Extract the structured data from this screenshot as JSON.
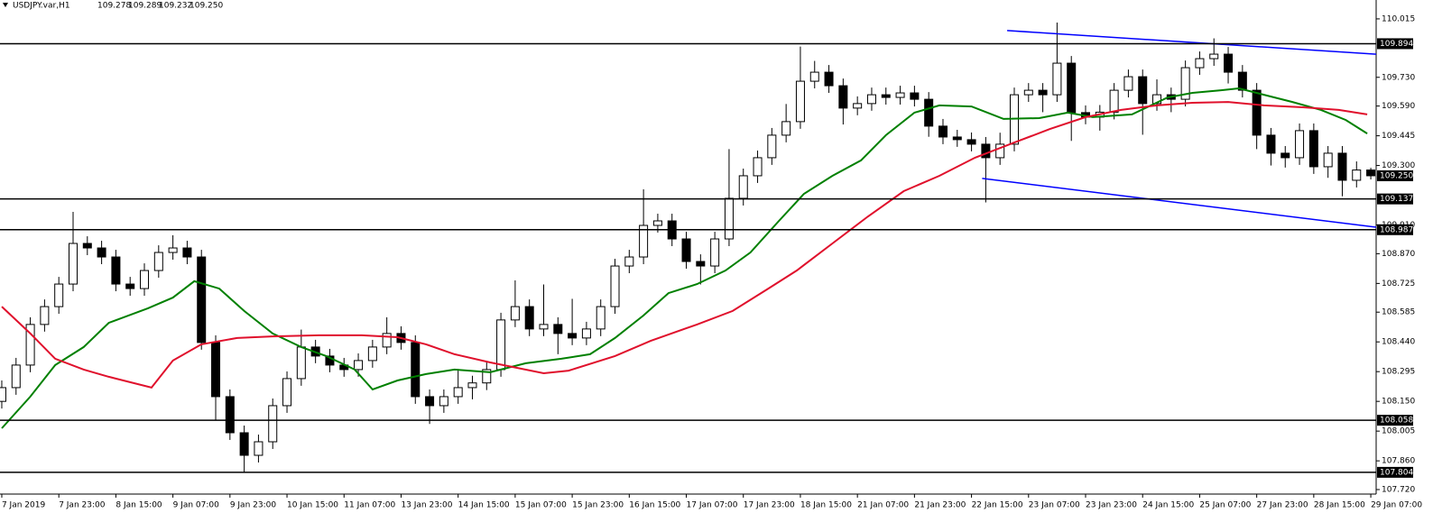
{
  "chart_data": {
    "type": "candlestick",
    "title": "USDJPY.var,H1",
    "ohlc_labels": [
      "109.278",
      "109.289",
      "109.232",
      "109.250"
    ],
    "x": [
      0,
      4,
      8,
      12,
      16,
      20,
      24,
      28,
      32,
      36,
      40,
      44,
      48,
      52,
      56,
      60,
      64,
      68,
      72,
      76,
      80,
      84,
      88,
      92,
      96,
      100,
      104,
      108,
      112,
      116,
      120,
      124,
      128,
      132,
      136,
      140,
      144,
      148,
      152,
      156,
      160,
      164,
      168,
      172,
      176,
      180,
      184,
      188,
      192,
      196,
      200,
      204,
      208,
      212,
      216,
      220,
      224,
      228,
      232,
      236,
      240,
      244,
      248,
      252,
      256,
      260,
      264,
      268,
      272,
      276,
      280,
      284,
      288,
      292,
      296,
      300,
      304,
      308,
      312,
      316,
      320,
      324,
      328,
      332,
      336,
      340,
      344,
      348,
      352,
      356,
      360,
      364,
      368,
      372,
      376,
      380,
      384
    ],
    "open": [
      108.15,
      108.217,
      108.327,
      108.525,
      108.612,
      108.722,
      108.92,
      108.898,
      108.854,
      108.722,
      108.7,
      108.788,
      108.876,
      108.898,
      108.854,
      108.437,
      108.173,
      107.997,
      107.887,
      107.953,
      108.129,
      108.261,
      108.415,
      108.371,
      108.327,
      108.305,
      108.349,
      108.415,
      108.481,
      108.437,
      108.173,
      108.129,
      108.173,
      108.217,
      108.24,
      108.305,
      108.547,
      108.612,
      108.503,
      108.525,
      108.481,
      108.459,
      108.503,
      108.612,
      108.81,
      108.854,
      109.008,
      109.03,
      108.942,
      108.832,
      108.81,
      108.942,
      109.14,
      109.25,
      109.338,
      109.448,
      109.514,
      109.711,
      109.755,
      109.689,
      109.58,
      109.602,
      109.645,
      109.632,
      109.654,
      109.623,
      109.492,
      109.439,
      109.426,
      109.404,
      109.338,
      109.404,
      109.645,
      109.667,
      109.645,
      109.799,
      109.558,
      109.536,
      109.56,
      109.667,
      109.733,
      109.602,
      109.645,
      109.623,
      109.777,
      109.821,
      109.843,
      109.755,
      109.667,
      109.448,
      109.36,
      109.338,
      109.47,
      109.294,
      109.36,
      109.228,
      109.278
    ],
    "high": [
      108.252,
      108.362,
      108.56,
      108.647,
      108.757,
      109.074,
      108.955,
      108.933,
      108.889,
      108.757,
      108.823,
      108.911,
      108.96,
      108.933,
      108.889,
      108.472,
      108.208,
      108.032,
      107.988,
      108.164,
      108.296,
      108.5,
      108.45,
      108.406,
      108.362,
      108.384,
      108.45,
      108.56,
      108.516,
      108.472,
      108.208,
      108.208,
      108.3,
      108.275,
      108.34,
      108.582,
      108.74,
      108.647,
      108.72,
      108.56,
      108.65,
      108.538,
      108.647,
      108.845,
      108.889,
      109.184,
      109.065,
      109.065,
      108.977,
      108.867,
      108.977,
      109.38,
      109.285,
      109.373,
      109.483,
      109.6,
      109.88,
      109.81,
      109.79,
      109.724,
      109.637,
      109.68,
      109.68,
      109.689,
      109.689,
      109.658,
      109.527,
      109.474,
      109.461,
      109.439,
      109.46,
      109.68,
      109.702,
      109.702,
      109.997,
      109.834,
      109.593,
      109.595,
      109.702,
      109.768,
      109.768,
      109.72,
      109.68,
      109.812,
      109.856,
      109.92,
      109.878,
      109.79,
      109.702,
      109.483,
      109.395,
      109.505,
      109.505,
      109.395,
      109.395,
      109.32,
      109.289
    ],
    "low": [
      108.115,
      108.182,
      108.292,
      108.49,
      108.577,
      108.687,
      108.863,
      108.819,
      108.687,
      108.665,
      108.665,
      108.753,
      108.841,
      108.819,
      108.402,
      108.06,
      107.962,
      107.804,
      107.852,
      107.918,
      108.094,
      108.226,
      108.336,
      108.292,
      108.27,
      108.27,
      108.314,
      108.38,
      108.402,
      108.138,
      108.04,
      108.094,
      108.138,
      108.16,
      108.205,
      108.27,
      108.512,
      108.468,
      108.468,
      108.38,
      108.424,
      108.424,
      108.468,
      108.577,
      108.775,
      108.819,
      108.973,
      108.907,
      108.797,
      108.72,
      108.775,
      108.907,
      109.105,
      109.215,
      109.303,
      109.413,
      109.479,
      109.676,
      109.654,
      109.5,
      109.545,
      109.567,
      109.597,
      109.597,
      109.588,
      109.44,
      109.404,
      109.391,
      109.369,
      109.12,
      109.303,
      109.369,
      109.61,
      109.56,
      109.61,
      109.42,
      109.501,
      109.47,
      109.525,
      109.632,
      109.45,
      109.567,
      109.56,
      109.588,
      109.742,
      109.786,
      109.7,
      109.632,
      109.38,
      109.3,
      109.29,
      109.303,
      109.259,
      109.24,
      109.15,
      109.193,
      109.232
    ],
    "close": [
      108.217,
      108.327,
      108.525,
      108.612,
      108.722,
      108.92,
      108.898,
      108.854,
      108.722,
      108.7,
      108.788,
      108.876,
      108.898,
      108.854,
      108.437,
      108.173,
      107.997,
      107.887,
      107.953,
      108.129,
      108.261,
      108.415,
      108.371,
      108.327,
      108.305,
      108.349,
      108.415,
      108.481,
      108.437,
      108.173,
      108.129,
      108.173,
      108.217,
      108.24,
      108.305,
      108.547,
      108.612,
      108.503,
      108.525,
      108.481,
      108.459,
      108.503,
      108.612,
      108.81,
      108.854,
      109.008,
      109.03,
      108.942,
      108.832,
      108.81,
      108.942,
      109.14,
      109.25,
      109.338,
      109.448,
      109.514,
      109.711,
      109.755,
      109.689,
      109.58,
      109.602,
      109.645,
      109.632,
      109.654,
      109.623,
      109.492,
      109.439,
      109.426,
      109.404,
      109.338,
      109.404,
      109.645,
      109.667,
      109.645,
      109.799,
      109.558,
      109.536,
      109.56,
      109.667,
      109.733,
      109.602,
      109.645,
      109.623,
      109.777,
      109.821,
      109.843,
      109.755,
      109.667,
      109.448,
      109.36,
      109.338,
      109.47,
      109.294,
      109.36,
      109.228,
      109.278,
      109.25
    ],
    "up_color": "#ffffff",
    "down_color": "#000000",
    "ma_lines": [
      {
        "color": "#008000",
        "x": [
          0,
          8,
          15,
          23,
          30,
          41,
          48,
          54,
          61,
          68,
          76,
          84,
          91,
          99,
          104,
          111,
          119,
          127,
          137,
          147,
          157,
          165,
          172,
          180,
          187,
          195,
          203,
          210,
          218,
          225,
          233,
          241,
          248,
          256,
          263,
          272,
          281,
          291,
          299,
          306,
          317,
          327,
          334,
          342,
          347,
          354,
          362,
          370,
          377,
          383
        ],
        "values": [
          108.019,
          108.173,
          108.327,
          108.415,
          108.533,
          108.604,
          108.656,
          108.736,
          108.7,
          108.591,
          108.481,
          108.415,
          108.371,
          108.305,
          108.208,
          108.252,
          108.283,
          108.305,
          108.292,
          108.336,
          108.358,
          108.38,
          108.459,
          108.569,
          108.678,
          108.722,
          108.788,
          108.876,
          109.03,
          109.162,
          109.25,
          109.325,
          109.448,
          109.558,
          109.593,
          109.588,
          109.527,
          109.531,
          109.558,
          109.536,
          109.549,
          109.632,
          109.654,
          109.667,
          109.676,
          109.645,
          109.61,
          109.571,
          109.522,
          109.456
        ]
      },
      {
        "color": "#e0102c",
        "x": [
          0,
          8,
          15,
          23,
          30,
          42,
          48,
          56,
          66,
          76,
          89,
          101,
          111,
          119,
          127,
          137,
          152,
          159,
          172,
          182,
          195,
          205,
          215,
          223,
          233,
          243,
          253,
          263,
          273,
          284,
          294,
          304,
          314,
          324,
          334,
          344,
          354,
          365,
          375,
          383
        ],
        "values": [
          108.612,
          108.481,
          108.358,
          108.305,
          108.27,
          108.217,
          108.349,
          108.428,
          108.459,
          108.467,
          108.472,
          108.472,
          108.463,
          108.428,
          108.38,
          108.34,
          108.287,
          108.3,
          108.371,
          108.445,
          108.525,
          108.591,
          108.7,
          108.788,
          108.92,
          109.052,
          109.175,
          109.25,
          109.338,
          109.412,
          109.478,
          109.536,
          109.571,
          109.593,
          109.606,
          109.61,
          109.593,
          109.584,
          109.571,
          109.549
        ]
      }
    ],
    "trendlines": [
      {
        "color": "#0000ff",
        "x": [
          282,
          385.5
        ],
        "values": [
          109.958,
          109.843
        ]
      },
      {
        "color": "#0000ff",
        "x": [
          275,
          385.5
        ],
        "values": [
          109.237,
          108.999
        ]
      }
    ],
    "levels": [
      109.894,
      109.137,
      108.987,
      108.058,
      107.804
    ],
    "current_price": {
      "value": 109.25,
      "label": "109.250"
    },
    "xlim": [
      -0.5,
      385.5
    ],
    "ylim": [
      107.698,
      110.107
    ],
    "yticks": [
      110.015,
      {
        "value": 109.73,
        "label": "109.730"
      },
      {
        "value": 109.59,
        "label": "109.590"
      },
      109.445,
      {
        "value": 109.3,
        "label": "109.300"
      },
      {
        "value": 109.01,
        "label": "109.010"
      },
      {
        "value": 108.87,
        "label": "108.870"
      },
      108.725,
      108.585,
      {
        "value": 108.44,
        "label": "108.440"
      },
      108.295,
      {
        "value": 108.15,
        "label": "108.150"
      },
      108.005,
      {
        "value": 107.86,
        "label": "107.860"
      },
      {
        "value": 107.72,
        "label": "107.720"
      }
    ],
    "xticks": [
      {
        "value": 0,
        "label": "7 Jan 2019"
      },
      {
        "value": 16,
        "label": "7 Jan 23:00"
      },
      {
        "value": 32,
        "label": "8 Jan 15:00"
      },
      {
        "value": 48,
        "label": "9 Jan 07:00"
      },
      {
        "value": 64,
        "label": "9 Jan 23:00"
      },
      {
        "value": 80,
        "label": "10 Jan 15:00"
      },
      {
        "value": 96,
        "label": "11 Jan 07:00"
      },
      {
        "value": 112,
        "label": "13 Jan 23:00"
      },
      {
        "value": 128,
        "label": "14 Jan 15:00"
      },
      {
        "value": 144,
        "label": "15 Jan 07:00"
      },
      {
        "value": 160,
        "label": "15 Jan 23:00"
      },
      {
        "value": 176,
        "label": "16 Jan 15:00"
      },
      {
        "value": 192,
        "label": "17 Jan 07:00"
      },
      {
        "value": 208,
        "label": "17 Jan 23:00"
      },
      {
        "value": 224,
        "label": "18 Jan 15:00"
      },
      {
        "value": 240,
        "label": "21 Jan 07:00"
      },
      {
        "value": 256,
        "label": "21 Jan 23:00"
      },
      {
        "value": 272,
        "label": "22 Jan 15:00"
      },
      {
        "value": 288,
        "label": "23 Jan 07:00"
      },
      {
        "value": 304,
        "label": "23 Jan 23:00"
      },
      {
        "value": 320,
        "label": "24 Jan 15:00"
      },
      {
        "value": 336,
        "label": "25 Jan 07:00"
      },
      {
        "value": 352,
        "label": "27 Jan 23:00"
      },
      {
        "value": 368,
        "label": "28 Jan 15:00"
      },
      {
        "value": 384,
        "label": "29 Jan 07:00"
      }
    ]
  }
}
